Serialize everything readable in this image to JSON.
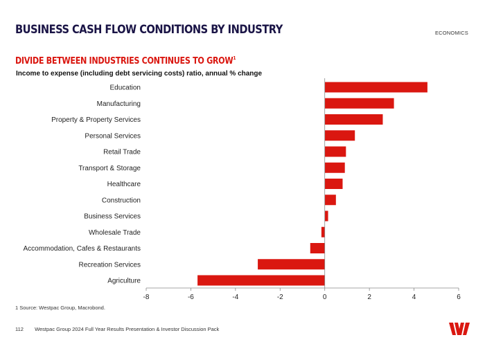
{
  "header": {
    "title": "BUSINESS CASH FLOW CONDITIONS BY INDUSTRY",
    "section": "ECONOMICS"
  },
  "chart_heading": {
    "subtitle": "DIVIDE BETWEEN INDUSTRIES CONTINUES TO GROW",
    "footnote_marker": "1"
  },
  "chart_data": {
    "type": "bar",
    "orientation": "horizontal",
    "title": "Income to expense (including debt servicing costs) ratio, annual % change",
    "xlabel": "",
    "ylabel": "",
    "categories": [
      "Education",
      "Manufacturing",
      "Property & Property Services",
      "Personal Services",
      "Retail Trade",
      "Transport & Storage",
      "Healthcare",
      "Construction",
      "Business Services",
      "Wholesale Trade",
      "Accommodation, Cafes & Restaurants",
      "Recreation Services",
      "Agriculture"
    ],
    "values": [
      4.6,
      3.1,
      2.6,
      1.35,
      0.95,
      0.9,
      0.8,
      0.5,
      0.15,
      -0.15,
      -0.65,
      -3.0,
      -5.7
    ],
    "xlim": [
      -8,
      6
    ],
    "xticks": [
      "-8",
      "-6",
      "-4",
      "-2",
      "0",
      "2",
      "4",
      "6"
    ],
    "bar_color": "#da1710"
  },
  "source_note": "1 Source: Westpac Group, Macrobond.",
  "footer": {
    "page_number": "112",
    "text": "Westpac Group 2024 Full Year Results Presentation & Investor Discussion Pack"
  },
  "brand": {
    "color": "#da1710"
  }
}
